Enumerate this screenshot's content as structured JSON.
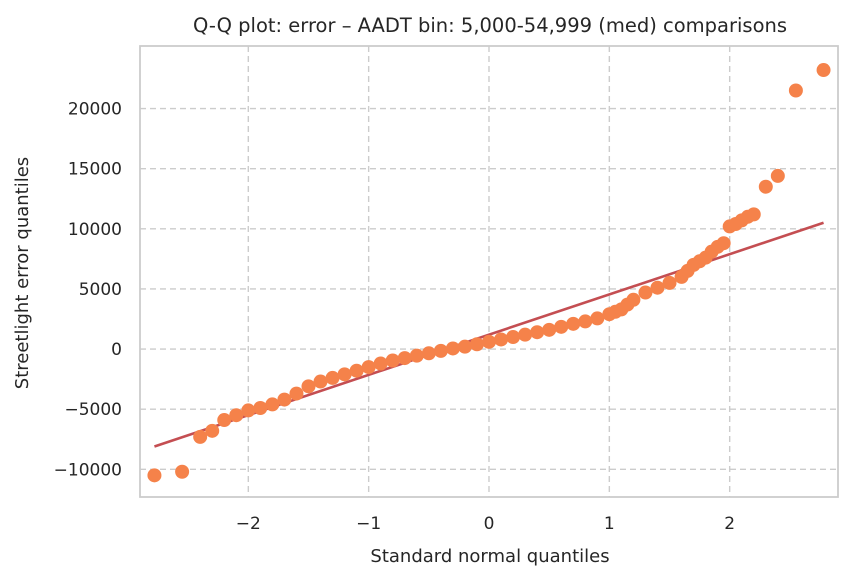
{
  "chart_data": {
    "type": "scatter",
    "title": "Q-Q plot: error – AADT bin: 5,000-54,999 (med) comparisons",
    "xlabel": "Standard normal quantiles",
    "ylabel": "Streetlight error quantiles",
    "xlim": [
      -2.9,
      2.9
    ],
    "ylim": [
      -12300,
      25200
    ],
    "grid": true,
    "grid_style": "dashed",
    "x_ticks": [
      {
        "value": -2,
        "label": "−2"
      },
      {
        "value": -1,
        "label": "−1"
      },
      {
        "value": 0,
        "label": "0"
      },
      {
        "value": 1,
        "label": "1"
      },
      {
        "value": 2,
        "label": "2"
      }
    ],
    "y_ticks": [
      {
        "value": -10000,
        "label": "−10000"
      },
      {
        "value": -5000,
        "label": "−5000"
      },
      {
        "value": 0,
        "label": "0"
      },
      {
        "value": 5000,
        "label": "5000"
      },
      {
        "value": 10000,
        "label": "10000"
      },
      {
        "value": 15000,
        "label": "15000"
      },
      {
        "value": 20000,
        "label": "20000"
      }
    ],
    "colors": {
      "points": "#f5824a",
      "fit_line": "#c44e52",
      "grid": "#cccccc",
      "frame": "#cccccc",
      "text": "#262626"
    },
    "fit_line": {
      "x": [
        -2.78,
        2.78
      ],
      "y": [
        -8100,
        10500
      ]
    },
    "series": [
      {
        "x": [
          -2.78,
          -2.55,
          -2.4,
          -2.3,
          -2.2,
          -2.1,
          -2.0,
          -1.9,
          -1.8,
          -1.7,
          -1.6,
          -1.5,
          -1.4,
          -1.3,
          -1.2,
          -1.1,
          -1.0,
          -0.9,
          -0.8,
          -0.7,
          -0.6,
          -0.5,
          -0.4,
          -0.3,
          -0.2,
          -0.1,
          0.0,
          0.1,
          0.2,
          0.3,
          0.4,
          0.5,
          0.6,
          0.7,
          0.8,
          0.9,
          1.0,
          1.05,
          1.1,
          1.15,
          1.2,
          1.3,
          1.4,
          1.5,
          1.6,
          1.65,
          1.7,
          1.75,
          1.8,
          1.85,
          1.9,
          1.95,
          2.0,
          2.05,
          2.1,
          2.15,
          2.2,
          2.3,
          2.4,
          2.55,
          2.78
        ],
        "y": [
          -10500,
          -10200,
          -7300,
          -6800,
          -5900,
          -5500,
          -5100,
          -4900,
          -4600,
          -4200,
          -3700,
          -3100,
          -2700,
          -2400,
          -2100,
          -1800,
          -1500,
          -1200,
          -950,
          -750,
          -550,
          -350,
          -150,
          50,
          200,
          400,
          600,
          800,
          1000,
          1200,
          1400,
          1600,
          1850,
          2100,
          2300,
          2550,
          2900,
          3100,
          3300,
          3700,
          4100,
          4700,
          5100,
          5500,
          6000,
          6500,
          7000,
          7300,
          7600,
          8100,
          8500,
          8800,
          10200,
          10400,
          10700,
          11000,
          11200,
          13500,
          14400,
          21500,
          23200
        ]
      }
    ]
  }
}
